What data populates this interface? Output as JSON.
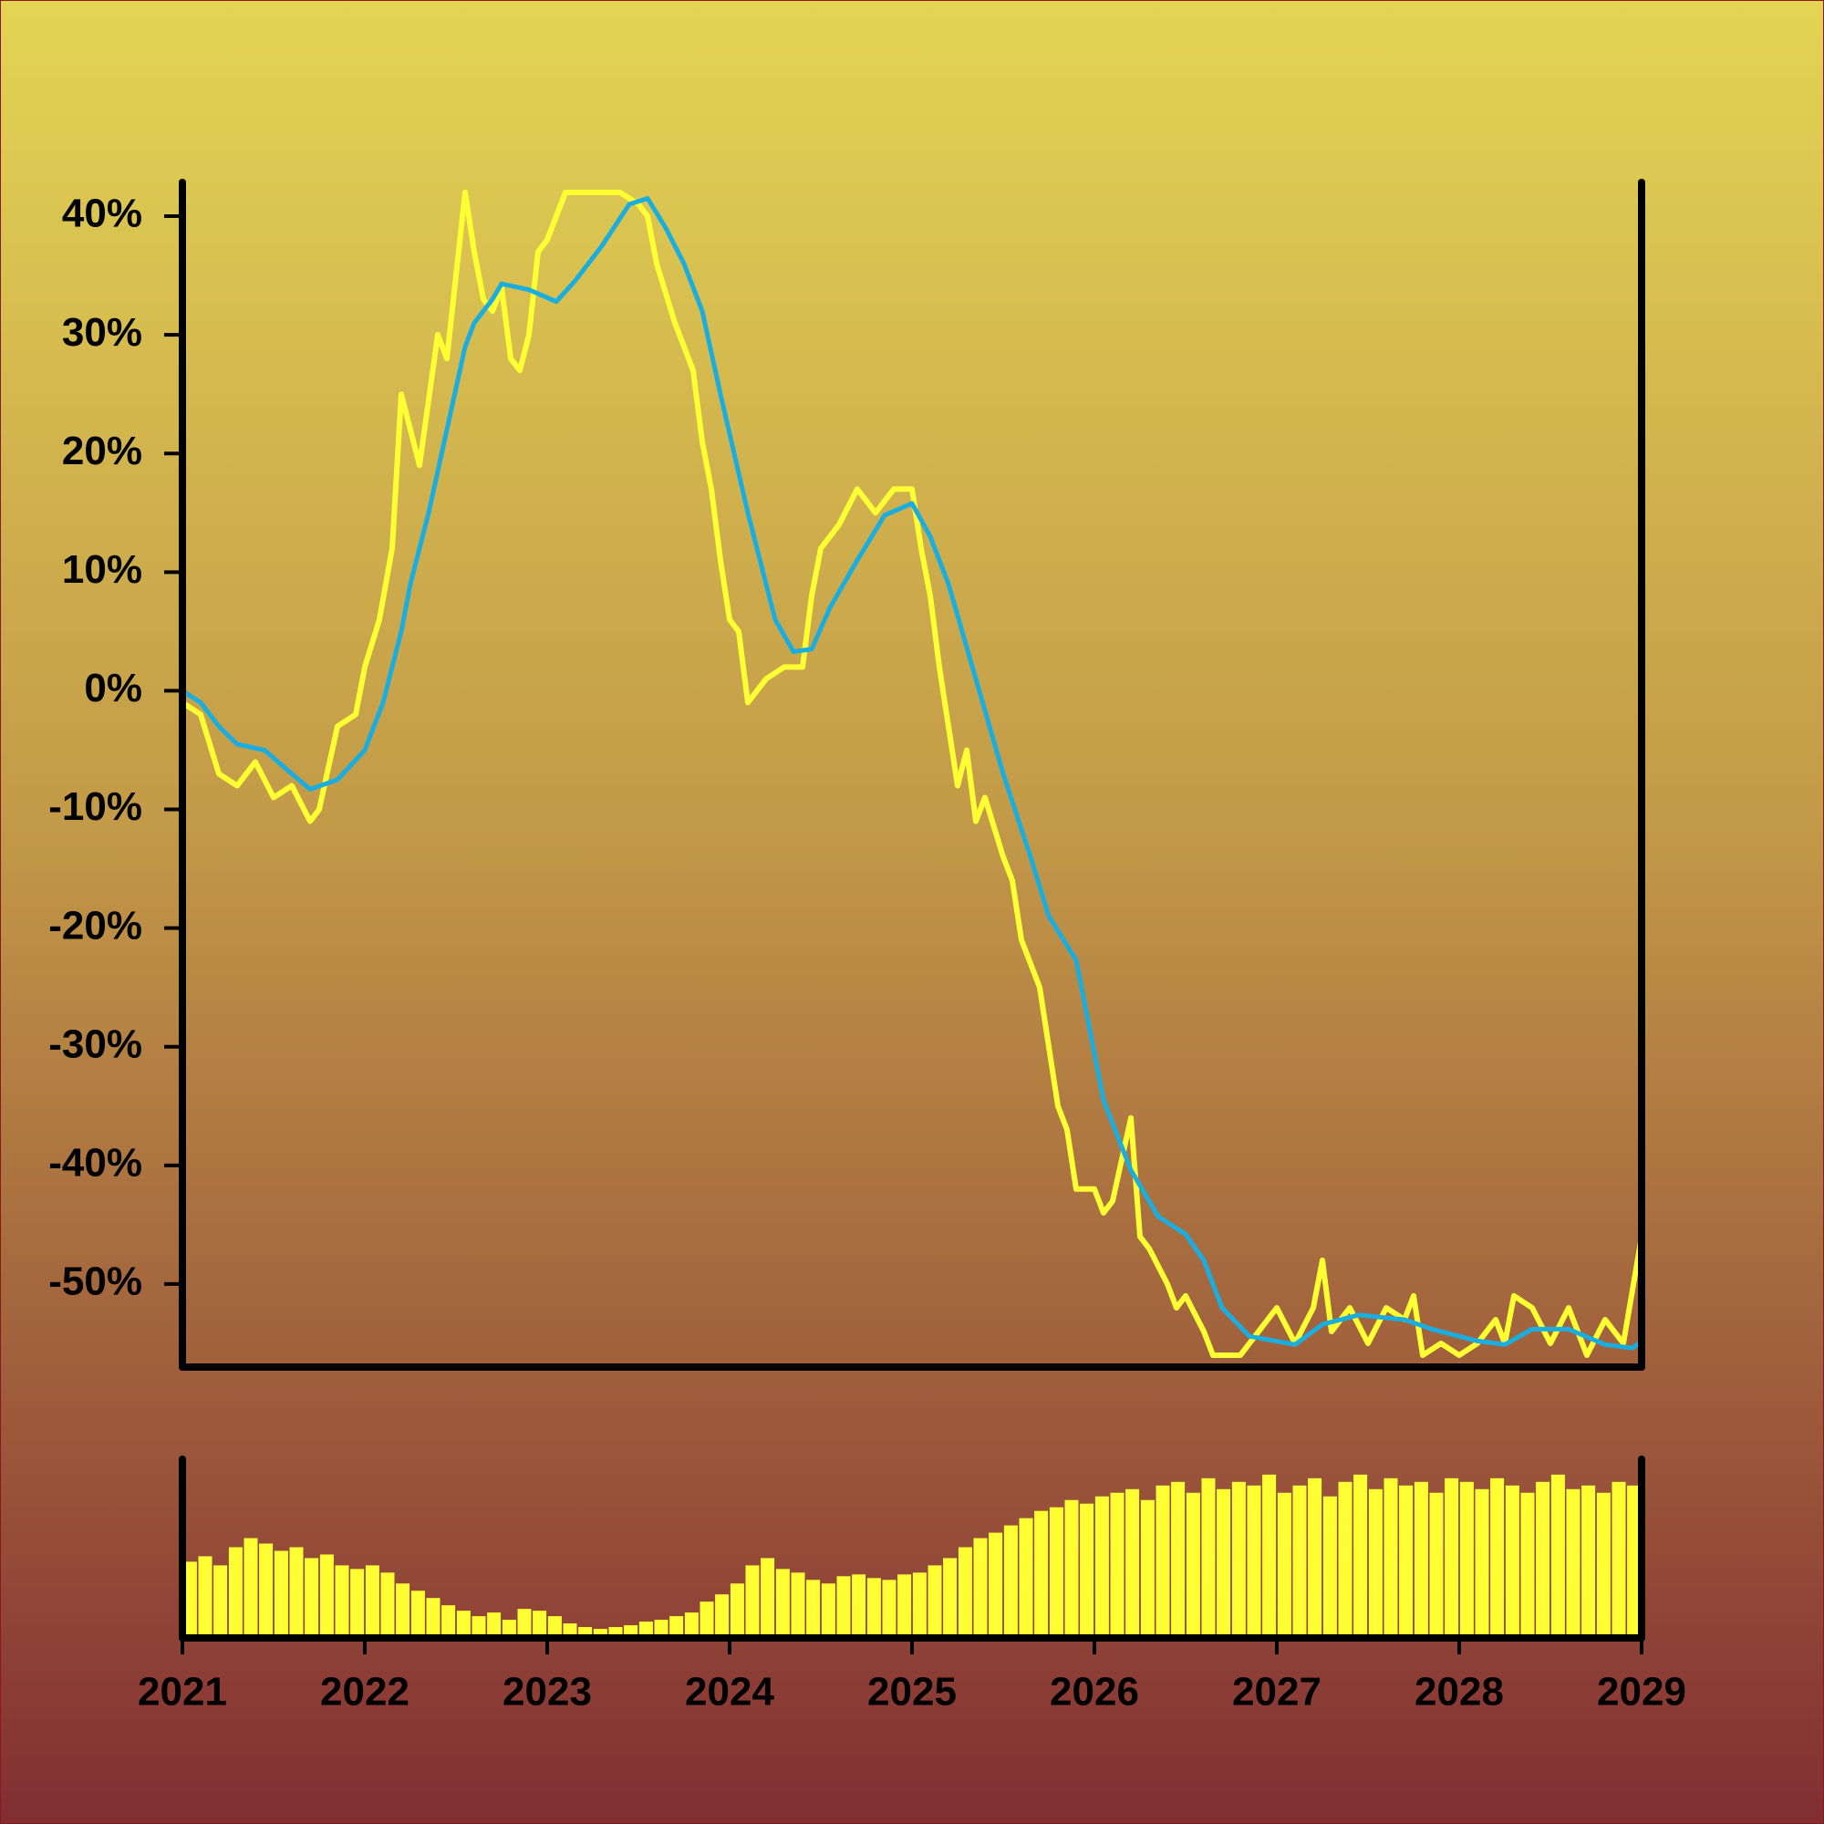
{
  "chart_data": [
    {
      "type": "line",
      "xlim": [
        2021,
        2029
      ],
      "ylim": [
        -57,
        43
      ],
      "yticks": [
        {
          "value": 40,
          "label": "40%"
        },
        {
          "value": 30,
          "label": "30%"
        },
        {
          "value": 20,
          "label": "20%"
        },
        {
          "value": 10,
          "label": "10%"
        },
        {
          "value": 0,
          "label": "0%"
        },
        {
          "value": -10,
          "label": "-10%"
        },
        {
          "value": -20,
          "label": "-20%"
        },
        {
          "value": -30,
          "label": "-30%"
        },
        {
          "value": -40,
          "label": "-40%"
        },
        {
          "value": -50,
          "label": "-50%"
        }
      ],
      "series": [
        {
          "color": "#ffff33",
          "x": [
            2021.0,
            2021.1,
            2021.2,
            2021.3,
            2021.4,
            2021.5,
            2021.6,
            2021.7,
            2021.75,
            2021.85,
            2021.95,
            2022.0,
            2022.08,
            2022.15,
            2022.2,
            2022.25,
            2022.3,
            2022.4,
            2022.45,
            2022.5,
            2022.55,
            2022.6,
            2022.65,
            2022.7,
            2022.75,
            2022.8,
            2022.85,
            2022.9,
            2022.95,
            2023.0,
            2023.1,
            2023.2,
            2023.3,
            2023.4,
            2023.5,
            2023.55,
            2023.6,
            2023.7,
            2023.8,
            2023.85,
            2023.9,
            2023.95,
            2024.0,
            2024.05,
            2024.1,
            2024.2,
            2024.3,
            2024.4,
            2024.45,
            2024.5,
            2024.6,
            2024.7,
            2024.8,
            2024.9,
            2025.0,
            2025.05,
            2025.1,
            2025.15,
            2025.2,
            2025.25,
            2025.3,
            2025.35,
            2025.4,
            2025.5,
            2025.55,
            2025.6,
            2025.7,
            2025.75,
            2025.8,
            2025.85,
            2025.9,
            2026.0,
            2026.05,
            2026.1,
            2026.2,
            2026.25,
            2026.3,
            2026.4,
            2026.45,
            2026.5,
            2026.6,
            2026.65,
            2026.8,
            2026.9,
            2027.0,
            2027.1,
            2027.2,
            2027.25,
            2027.3,
            2027.4,
            2027.5,
            2027.6,
            2027.7,
            2027.75,
            2027.8,
            2027.9,
            2028.0,
            2028.1,
            2028.2,
            2028.25,
            2028.3,
            2028.4,
            2028.5,
            2028.6,
            2028.7,
            2028.8,
            2028.9,
            2029.0
          ],
          "values": [
            -1,
            -2,
            -7,
            -8,
            -6,
            -9,
            -8,
            -11,
            -10,
            -3,
            -2,
            2,
            6,
            12,
            25,
            22,
            19,
            30,
            28,
            35,
            42,
            37,
            33,
            32,
            34,
            28,
            27,
            30,
            37,
            38,
            42,
            42,
            42,
            42,
            41,
            40,
            36,
            31,
            27,
            21,
            17,
            11,
            6,
            5,
            -1,
            1,
            2,
            2,
            8,
            12,
            14,
            17,
            15,
            17,
            17,
            12,
            8,
            2,
            -3,
            -8,
            -5,
            -11,
            -9,
            -14,
            -16,
            -21,
            -25,
            -30,
            -35,
            -37,
            -42,
            -42,
            -44,
            -43,
            -36,
            -46,
            -47,
            -50,
            -52,
            -51,
            -54,
            -56,
            -56,
            -54,
            -52,
            -55,
            -52,
            -48,
            -54,
            -52,
            -55,
            -52,
            -53,
            -51,
            -56,
            -55,
            -56,
            -55,
            -53,
            -55,
            -51,
            -52,
            -55,
            -52,
            -56,
            -53,
            -55,
            -46
          ]
        },
        {
          "color": "#1aaee0",
          "x": [
            2021.0,
            2021.1,
            2021.2,
            2021.3,
            2021.45,
            2021.6,
            2021.7,
            2021.85,
            2022.0,
            2022.1,
            2022.2,
            2022.25,
            2022.35,
            2022.45,
            2022.55,
            2022.6,
            2022.7,
            2022.75,
            2022.9,
            2023.05,
            2023.15,
            2023.3,
            2023.45,
            2023.55,
            2023.65,
            2023.75,
            2023.85,
            2023.95,
            2024.1,
            2024.25,
            2024.35,
            2024.45,
            2024.55,
            2024.7,
            2024.85,
            2025.0,
            2025.1,
            2025.2,
            2025.35,
            2025.5,
            2025.65,
            2025.75,
            2025.9,
            2026.05,
            2026.2,
            2026.35,
            2026.5,
            2026.6,
            2026.7,
            2026.85,
            2027.1,
            2027.25,
            2027.45,
            2027.7,
            2027.85,
            2028.1,
            2028.25,
            2028.4,
            2028.6,
            2028.8,
            2028.95,
            2029.0
          ],
          "values": [
            0,
            -1,
            -3,
            -4.5,
            -5,
            -7,
            -8.3,
            -7.5,
            -5,
            -1,
            5,
            9,
            15,
            22,
            29,
            31,
            33,
            34.3,
            33.8,
            32.8,
            34.5,
            37.5,
            41,
            41.5,
            39,
            36,
            32,
            25,
            15,
            6,
            3.3,
            3.5,
            7,
            11,
            14.8,
            15.8,
            13,
            9,
            1,
            -7,
            -14,
            -19,
            -22.7,
            -34.5,
            -40.4,
            -44.3,
            -45.8,
            -48,
            -52,
            -54.4,
            -55.1,
            -53.4,
            -52.6,
            -53,
            -53.8,
            -54.8,
            -55.1,
            -53.8,
            -53.8,
            -55.1,
            -55.4,
            -54.8
          ]
        }
      ]
    },
    {
      "type": "bar",
      "color": "#ffff33",
      "xlim": [
        2021,
        2029
      ],
      "ylim": [
        0,
        100
      ],
      "xticks": [
        2021,
        2022,
        2023,
        2024,
        2025,
        2026,
        2027,
        2028,
        2029
      ],
      "x": [
        2021.042,
        2021.125,
        2021.208,
        2021.292,
        2021.375,
        2021.458,
        2021.542,
        2021.625,
        2021.708,
        2021.792,
        2021.875,
        2021.958,
        2022.042,
        2022.125,
        2022.208,
        2022.292,
        2022.375,
        2022.458,
        2022.542,
        2022.625,
        2022.708,
        2022.792,
        2022.875,
        2022.958,
        2023.042,
        2023.125,
        2023.208,
        2023.292,
        2023.375,
        2023.458,
        2023.542,
        2023.625,
        2023.708,
        2023.792,
        2023.875,
        2023.958,
        2024.042,
        2024.125,
        2024.208,
        2024.292,
        2024.375,
        2024.458,
        2024.542,
        2024.625,
        2024.708,
        2024.792,
        2024.875,
        2024.958,
        2025.042,
        2025.125,
        2025.208,
        2025.292,
        2025.375,
        2025.458,
        2025.542,
        2025.625,
        2025.708,
        2025.792,
        2025.875,
        2025.958,
        2026.042,
        2026.125,
        2026.208,
        2026.292,
        2026.375,
        2026.458,
        2026.542,
        2026.625,
        2026.708,
        2026.792,
        2026.875,
        2026.958,
        2027.042,
        2027.125,
        2027.208,
        2027.292,
        2027.375,
        2027.458,
        2027.542,
        2027.625,
        2027.708,
        2027.792,
        2027.875,
        2027.958,
        2028.042,
        2028.125,
        2028.208,
        2028.292,
        2028.375,
        2028.458,
        2028.542,
        2028.625,
        2028.708,
        2028.792,
        2028.875,
        2028.958
      ],
      "values": [
        42,
        45,
        40,
        50,
        55,
        52,
        48,
        50,
        44,
        46,
        40,
        38,
        40,
        36,
        30,
        26,
        22,
        18,
        15,
        12,
        14,
        10,
        16,
        15,
        12,
        8,
        6,
        5,
        6,
        7,
        9,
        10,
        12,
        14,
        20,
        24,
        30,
        40,
        44,
        38,
        36,
        32,
        30,
        34,
        35,
        33,
        32,
        35,
        36,
        40,
        44,
        50,
        55,
        58,
        62,
        66,
        70,
        72,
        76,
        74,
        78,
        80,
        82,
        76,
        84,
        86,
        80,
        88,
        82,
        86,
        84,
        90,
        80,
        84,
        88,
        78,
        86,
        90,
        82,
        88,
        84,
        86,
        80,
        88,
        86,
        82,
        88,
        84,
        80,
        86,
        90,
        82,
        84,
        80,
        86,
        84
      ]
    }
  ]
}
